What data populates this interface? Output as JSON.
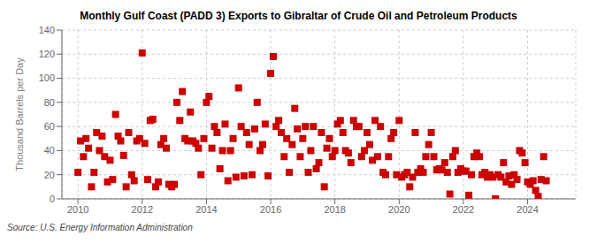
{
  "chart_data": {
    "type": "scatter",
    "title": "Monthly Gulf Coast (PADD 3) Exports to Gibraltar of Crude Oil and Petroleum Products",
    "ylabel": "Thousand Barrels per Day",
    "annotation": "Source: U.S. Energy Information Administration",
    "color": "#cc0000",
    "marker": "square",
    "grid": true,
    "xlim": [
      2009.5,
      2025.5
    ],
    "xticks": [
      2010,
      2012,
      2014,
      2016,
      2018,
      2020,
      2022,
      2024
    ],
    "ylim": [
      0,
      140
    ],
    "yticks": [
      0,
      20,
      40,
      60,
      80,
      100,
      120,
      140
    ],
    "x": [
      2010.0,
      2010.08,
      2010.17,
      2010.25,
      2010.33,
      2010.42,
      2010.5,
      2010.58,
      2010.67,
      2010.75,
      2010.83,
      2010.92,
      2011.0,
      2011.08,
      2011.17,
      2011.25,
      2011.33,
      2011.42,
      2011.5,
      2011.58,
      2011.67,
      2011.75,
      2011.83,
      2011.92,
      2012.0,
      2012.08,
      2012.17,
      2012.25,
      2012.33,
      2012.42,
      2012.5,
      2012.58,
      2012.67,
      2012.75,
      2012.83,
      2012.92,
      2013.0,
      2013.08,
      2013.17,
      2013.25,
      2013.33,
      2013.42,
      2013.5,
      2013.58,
      2013.67,
      2013.75,
      2013.83,
      2013.92,
      2014.0,
      2014.08,
      2014.17,
      2014.25,
      2014.33,
      2014.42,
      2014.5,
      2014.58,
      2014.67,
      2014.75,
      2014.83,
      2014.92,
      2015.0,
      2015.08,
      2015.17,
      2015.25,
      2015.33,
      2015.42,
      2015.5,
      2015.58,
      2015.67,
      2015.75,
      2015.83,
      2015.92,
      2016.0,
      2016.08,
      2016.17,
      2016.25,
      2016.33,
      2016.42,
      2016.5,
      2016.58,
      2016.67,
      2016.75,
      2016.83,
      2016.92,
      2017.0,
      2017.08,
      2017.17,
      2017.25,
      2017.33,
      2017.42,
      2017.5,
      2017.58,
      2017.67,
      2017.75,
      2017.83,
      2017.92,
      2018.0,
      2018.08,
      2018.17,
      2018.25,
      2018.33,
      2018.42,
      2018.5,
      2018.58,
      2018.67,
      2018.75,
      2018.83,
      2018.92,
      2019.0,
      2019.08,
      2019.17,
      2019.25,
      2019.33,
      2019.42,
      2019.5,
      2019.58,
      2019.67,
      2019.75,
      2019.83,
      2019.92,
      2020.0,
      2020.08,
      2020.17,
      2020.25,
      2020.33,
      2020.42,
      2020.5,
      2020.58,
      2020.67,
      2020.75,
      2020.83,
      2020.92,
      2021.0,
      2021.08,
      2021.17,
      2021.25,
      2021.33,
      2021.42,
      2021.5,
      2021.58,
      2021.67,
      2021.75,
      2021.83,
      2021.92,
      2022.0,
      2022.08,
      2022.17,
      2022.25,
      2022.33,
      2022.42,
      2022.5,
      2022.58,
      2022.67,
      2022.75,
      2022.83,
      2022.92,
      2023.0,
      2023.08,
      2023.17,
      2023.25,
      2023.33,
      2023.42,
      2023.5,
      2023.58,
      2023.67,
      2023.75,
      2023.83,
      2023.92,
      2024.0,
      2024.08,
      2024.17,
      2024.25,
      2024.33,
      2024.42,
      2024.5,
      2024.58
    ],
    "values": [
      22,
      48,
      35,
      50,
      42,
      10,
      22,
      55,
      40,
      52,
      35,
      14,
      32,
      16,
      70,
      52,
      48,
      36,
      10,
      55,
      20,
      15,
      48,
      50,
      121,
      46,
      16,
      65,
      66,
      10,
      14,
      45,
      50,
      42,
      12,
      10,
      12,
      80,
      65,
      89,
      50,
      48,
      72,
      48,
      46,
      42,
      20,
      50,
      80,
      85,
      42,
      60,
      55,
      25,
      40,
      62,
      15,
      40,
      50,
      18,
      92,
      60,
      19,
      55,
      45,
      20,
      58,
      80,
      40,
      45,
      62,
      19,
      104,
      118,
      60,
      65,
      55,
      35,
      50,
      22,
      45,
      75,
      58,
      35,
      50,
      60,
      22,
      40,
      60,
      25,
      30,
      55,
      10,
      42,
      50,
      35,
      40,
      62,
      65,
      55,
      40,
      38,
      30,
      65,
      60,
      60,
      35,
      40,
      55,
      45,
      32,
      65,
      35,
      60,
      22,
      20,
      35,
      50,
      55,
      20,
      65,
      18,
      20,
      22,
      10,
      18,
      55,
      22,
      25,
      22,
      35,
      45,
      55,
      35,
      24,
      25,
      24,
      30,
      22,
      4,
      35,
      40,
      22,
      25,
      23,
      23,
      3,
      20,
      35,
      38,
      35,
      20,
      22,
      18,
      20,
      18,
      0,
      20,
      18,
      30,
      14,
      19,
      12,
      20,
      16,
      40,
      38,
      30,
      14,
      12,
      15,
      7,
      2,
      16,
      35,
      15
    ]
  }
}
